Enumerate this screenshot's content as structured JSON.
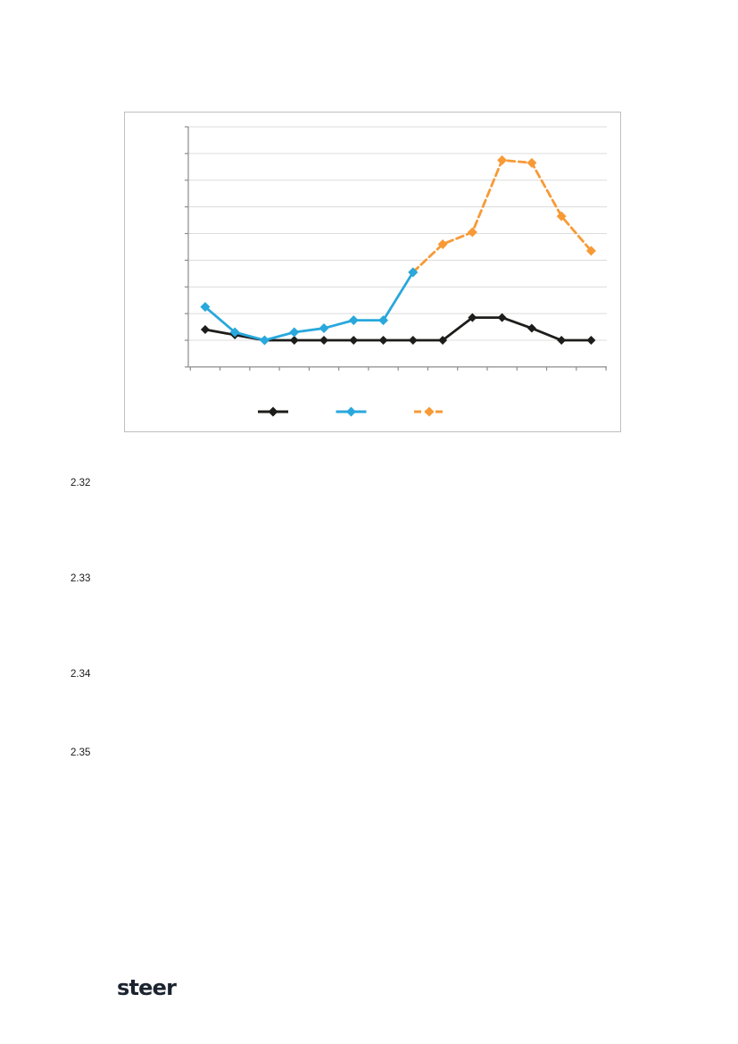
{
  "page": {
    "background": "#ffffff",
    "type": "report-page-with-figure"
  },
  "figure": {
    "border_color": "#bfbfbf",
    "gridline_color": "#dcdcdc",
    "axis_color": "#8c8c8c",
    "legend": {
      "position": "bottom",
      "keys": [
        {
          "label": "",
          "color": "#1d1d1b",
          "dash": null
        },
        {
          "label": "",
          "color": "#28a8dc",
          "dash": null
        },
        {
          "label": "",
          "color": "#f79a36",
          "dash": [
            8,
            4
          ]
        }
      ]
    }
  },
  "chart_data": {
    "type": "line",
    "title": "",
    "xlabel": "",
    "ylabel": "",
    "x": [
      1,
      2,
      3,
      4,
      5,
      6,
      7,
      8,
      9,
      10,
      11,
      12,
      13,
      14
    ],
    "x_tick_labels": [
      "",
      "",
      "",
      "",
      "",
      "",
      "",
      "",
      "",
      "",
      "",
      "",
      "",
      ""
    ],
    "y_tick_labels": [
      "",
      "",
      "",
      "",
      "",
      "",
      "",
      "",
      ""
    ],
    "note": "axis tick labels and legend labels are not visible in the source; values expressed in gridline units above the bottom gridline",
    "ylim": [
      -1,
      8
    ],
    "grid": true,
    "gridlines_at": [
      0,
      1,
      2,
      3,
      4,
      5,
      6,
      7,
      8
    ],
    "legend_position": "bottom",
    "series": [
      {
        "name": "series-black",
        "color": "#1d1d1b",
        "style": "solid",
        "marker": "diamond",
        "values": [
          0.4,
          0.2,
          0,
          0,
          0,
          0,
          0,
          0,
          0,
          0.85,
          0.85,
          0.45,
          0,
          0
        ]
      },
      {
        "name": "series-blue",
        "color": "#28a8dc",
        "style": "solid",
        "marker": "diamond",
        "values": [
          1.25,
          0.3,
          0,
          0.3,
          0.45,
          0.75,
          0.75,
          2.55,
          null,
          null,
          null,
          null,
          null,
          null
        ]
      },
      {
        "name": "series-orange",
        "color": "#f79a36",
        "style": "dashed",
        "marker": "diamond",
        "values": [
          null,
          null,
          null,
          null,
          null,
          null,
          null,
          2.55,
          3.6,
          4.05,
          6.75,
          6.65,
          4.65,
          3.35
        ]
      }
    ]
  },
  "paragraphs": [
    {
      "number": "2.32",
      "text": ""
    },
    {
      "number": "2.33",
      "text": ""
    },
    {
      "number": "2.34",
      "text": ""
    },
    {
      "number": "2.35",
      "text": ""
    }
  ],
  "footer": {
    "logo_text": "steer"
  }
}
